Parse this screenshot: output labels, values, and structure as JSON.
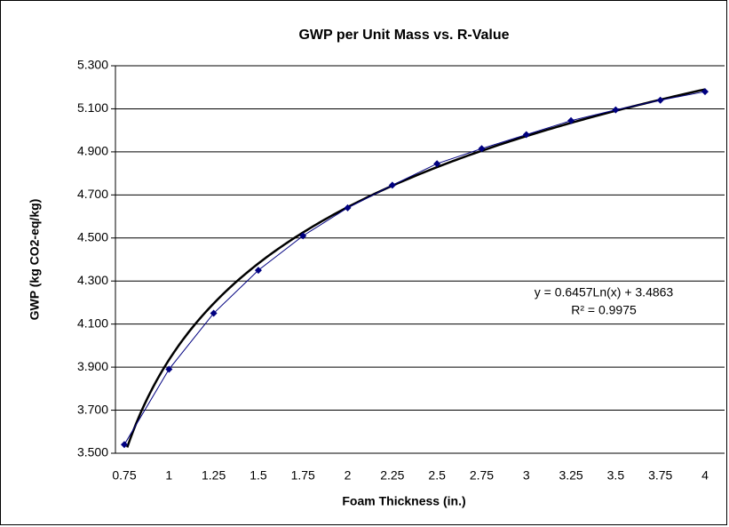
{
  "chart_data": {
    "type": "line",
    "title": "GWP per Unit Mass vs. R-Value",
    "x_label": "Foam Thickness (in.)",
    "y_label": "GWP (kg CO2-eq/kg)",
    "categories": [
      "0.75",
      "1",
      "1.25",
      "1.5",
      "1.75",
      "2",
      "2.25",
      "2.5",
      "2.75",
      "3",
      "3.25",
      "3.5",
      "3.75",
      "4"
    ],
    "series": [
      {
        "name": "GWP",
        "color": "#000080",
        "values": [
          3.54,
          3.89,
          4.15,
          4.35,
          4.51,
          4.64,
          4.745,
          4.845,
          4.915,
          4.98,
          5.045,
          5.095,
          5.14,
          5.18
        ]
      }
    ],
    "ylim": [
      3.5,
      5.3
    ],
    "yticks": [
      {
        "value": 3.5,
        "label": "3.500"
      },
      {
        "value": 3.7,
        "label": "3.700"
      },
      {
        "value": 3.9,
        "label": "3.900"
      },
      {
        "value": 4.1,
        "label": "4.100"
      },
      {
        "value": 4.3,
        "label": "4.300"
      },
      {
        "value": 4.5,
        "label": "4.500"
      },
      {
        "value": 4.7,
        "label": "4.700"
      },
      {
        "value": 4.9,
        "label": "4.900"
      },
      {
        "value": 5.1,
        "label": "5.100"
      },
      {
        "value": 5.3,
        "label": "5.300"
      }
    ],
    "grid": true,
    "trendline": {
      "equation": "y = 0.6457Ln(x) + 3.4863",
      "r_squared": "R² = 0.9975",
      "color": "#000000"
    }
  }
}
